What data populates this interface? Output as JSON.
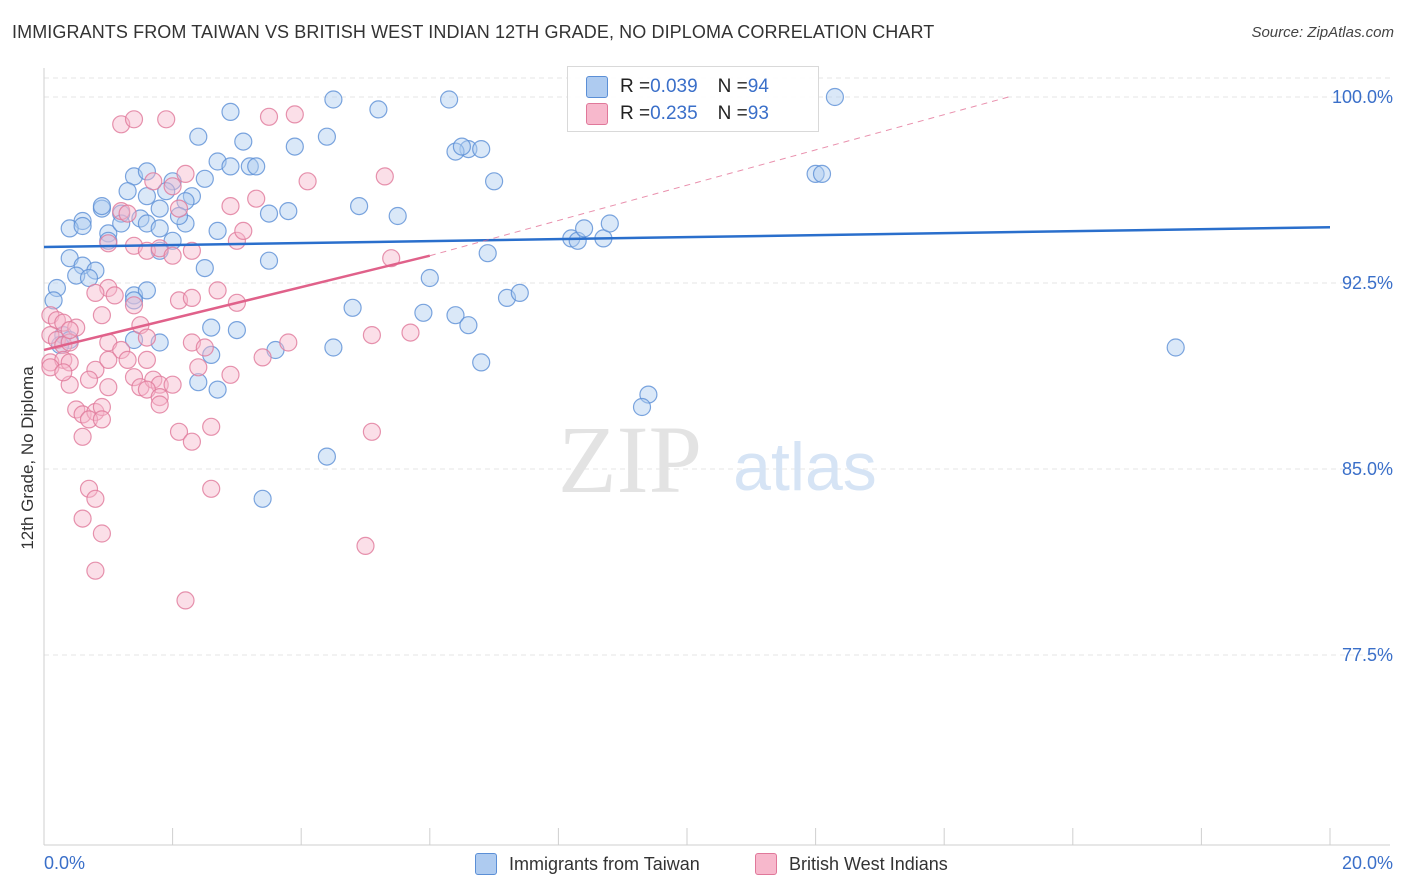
{
  "header": {
    "title": "IMMIGRANTS FROM TAIWAN VS BRITISH WEST INDIAN 12TH GRADE, NO DIPLOMA CORRELATION CHART",
    "source": "Source: ZipAtlas.com"
  },
  "legend_top": [
    {
      "r_label": "R = ",
      "r_value": "0.039",
      "n_label": "N = ",
      "n_value": "94"
    },
    {
      "r_label": "R = ",
      "r_value": "0.235",
      "n_label": "N = ",
      "n_value": "93"
    }
  ],
  "watermark": {
    "zip": "ZIP",
    "atlas": "atlas"
  },
  "colors": {
    "taiwan_fill": "#aecbf0",
    "taiwan_stroke": "#5b8fd6",
    "taiwan_line": "#2a6fcc",
    "bwi_fill": "#f7b8cc",
    "bwi_stroke": "#e0789a",
    "bwi_line": "#e0618a",
    "tick_label": "#3a6fc9",
    "grid": "#e6e6e6"
  },
  "chart_data": {
    "type": "scatter",
    "title": "IMMIGRANTS FROM TAIWAN VS BRITISH WEST INDIAN 12TH GRADE, NO DIPLOMA CORRELATION CHART",
    "xlabel": "",
    "ylabel": "12th Grade, No Diploma",
    "xlim": [
      0,
      20
    ],
    "ylim": [
      70,
      100.8
    ],
    "x_tick_labels": [
      "0.0%",
      "20.0%"
    ],
    "y_ticks": [
      77.5,
      85.0,
      92.5,
      100.0
    ],
    "y_tick_labels": [
      "77.5%",
      "85.0%",
      "92.5%",
      "100.0%"
    ],
    "grid": true,
    "legend_position": "bottom",
    "series": [
      {
        "name": "Immigrants from Taiwan",
        "R": 0.039,
        "N": 94,
        "trend": {
          "x": [
            0,
            20
          ],
          "y": [
            93.95,
            94.75
          ]
        },
        "points": [
          [
            1.4,
            96.8
          ],
          [
            1.3,
            96.2
          ],
          [
            1.6,
            97.0
          ],
          [
            1.6,
            96.0
          ],
          [
            2.0,
            96.6
          ],
          [
            2.5,
            96.7
          ],
          [
            2.7,
            97.4
          ],
          [
            2.9,
            97.2
          ],
          [
            3.2,
            97.2
          ],
          [
            3.1,
            98.2
          ],
          [
            2.9,
            99.4
          ],
          [
            2.4,
            98.4
          ],
          [
            3.9,
            98.0
          ],
          [
            4.4,
            98.4
          ],
          [
            4.5,
            99.9
          ],
          [
            5.2,
            99.5
          ],
          [
            6.3,
            99.9
          ],
          [
            6.6,
            97.9
          ],
          [
            6.8,
            97.9
          ],
          [
            6.4,
            97.8
          ],
          [
            0.6,
            95.0
          ],
          [
            0.9,
            95.5
          ],
          [
            1.2,
            95.3
          ],
          [
            1.5,
            95.1
          ],
          [
            1.0,
            94.5
          ],
          [
            1.6,
            94.9
          ],
          [
            1.8,
            95.5
          ],
          [
            2.2,
            94.9
          ],
          [
            2.7,
            94.6
          ],
          [
            3.5,
            95.3
          ],
          [
            4.9,
            95.6
          ],
          [
            5.5,
            95.2
          ],
          [
            7.0,
            96.6
          ],
          [
            0.4,
            94.7
          ],
          [
            0.6,
            94.8
          ],
          [
            1.0,
            94.2
          ],
          [
            1.8,
            94.7
          ],
          [
            2.0,
            94.2
          ],
          [
            1.8,
            93.8
          ],
          [
            0.4,
            93.5
          ],
          [
            0.6,
            93.2
          ],
          [
            0.8,
            93.0
          ],
          [
            0.5,
            92.8
          ],
          [
            0.7,
            92.7
          ],
          [
            2.5,
            93.1
          ],
          [
            3.5,
            93.4
          ],
          [
            6.0,
            92.7
          ],
          [
            6.9,
            93.7
          ],
          [
            1.4,
            92.0
          ],
          [
            1.6,
            92.2
          ],
          [
            0.2,
            92.3
          ],
          [
            0.15,
            91.8
          ],
          [
            1.4,
            91.8
          ],
          [
            2.6,
            90.7
          ],
          [
            3.0,
            90.6
          ],
          [
            4.8,
            91.5
          ],
          [
            5.9,
            91.3
          ],
          [
            6.4,
            91.2
          ],
          [
            6.6,
            90.8
          ],
          [
            7.2,
            91.9
          ],
          [
            7.4,
            92.1
          ],
          [
            0.3,
            90.4
          ],
          [
            0.4,
            90.2
          ],
          [
            0.25,
            90.0
          ],
          [
            1.4,
            90.2
          ],
          [
            1.8,
            90.1
          ],
          [
            2.6,
            89.6
          ],
          [
            3.6,
            89.8
          ],
          [
            4.5,
            89.9
          ],
          [
            6.8,
            89.3
          ],
          [
            2.4,
            88.5
          ],
          [
            2.7,
            88.2
          ],
          [
            9.4,
            88.0
          ],
          [
            9.3,
            87.5
          ],
          [
            4.4,
            85.5
          ],
          [
            3.4,
            83.8
          ],
          [
            12.0,
            96.9
          ],
          [
            12.1,
            96.9
          ],
          [
            8.2,
            94.3
          ],
          [
            8.3,
            94.2
          ],
          [
            8.4,
            94.7
          ],
          [
            8.7,
            94.3
          ],
          [
            8.8,
            94.9
          ],
          [
            17.6,
            89.9
          ],
          [
            12.3,
            100.0
          ],
          [
            1.2,
            94.9
          ],
          [
            3.8,
            95.4
          ],
          [
            2.3,
            96.0
          ],
          [
            0.9,
            95.6
          ],
          [
            2.2,
            95.8
          ],
          [
            2.1,
            95.2
          ],
          [
            3.3,
            97.2
          ],
          [
            1.9,
            96.2
          ],
          [
            6.5,
            98.0
          ]
        ]
      },
      {
        "name": "British West Indians",
        "R": 0.235,
        "N": 93,
        "trend": {
          "x": [
            0,
            6
          ],
          "y": [
            89.8,
            93.6
          ]
        },
        "trend_dashed": {
          "x": [
            6,
            15
          ],
          "y": [
            93.6,
            100.0
          ]
        },
        "points": [
          [
            1.2,
            98.9
          ],
          [
            1.4,
            99.1
          ],
          [
            1.9,
            99.1
          ],
          [
            3.5,
            99.2
          ],
          [
            3.9,
            99.3
          ],
          [
            1.7,
            96.6
          ],
          [
            2.2,
            96.9
          ],
          [
            2.0,
            96.4
          ],
          [
            3.3,
            95.9
          ],
          [
            4.1,
            96.6
          ],
          [
            5.3,
            96.8
          ],
          [
            1.2,
            95.4
          ],
          [
            1.3,
            95.3
          ],
          [
            2.1,
            95.5
          ],
          [
            2.9,
            95.6
          ],
          [
            1.0,
            94.1
          ],
          [
            1.4,
            94.0
          ],
          [
            1.6,
            93.8
          ],
          [
            1.8,
            93.9
          ],
          [
            2.0,
            93.6
          ],
          [
            2.3,
            93.8
          ],
          [
            3.0,
            94.2
          ],
          [
            3.1,
            94.6
          ],
          [
            5.4,
            93.5
          ],
          [
            1.0,
            92.3
          ],
          [
            1.1,
            92.0
          ],
          [
            1.4,
            91.6
          ],
          [
            2.1,
            91.8
          ],
          [
            2.3,
            91.9
          ],
          [
            3.0,
            91.7
          ],
          [
            0.1,
            91.2
          ],
          [
            0.2,
            91.0
          ],
          [
            0.3,
            90.9
          ],
          [
            0.5,
            90.7
          ],
          [
            0.9,
            91.2
          ],
          [
            1.5,
            90.8
          ],
          [
            0.1,
            90.4
          ],
          [
            0.2,
            90.2
          ],
          [
            0.3,
            90.0
          ],
          [
            0.4,
            90.1
          ],
          [
            1.0,
            90.1
          ],
          [
            1.2,
            89.8
          ],
          [
            2.3,
            90.1
          ],
          [
            3.8,
            90.1
          ],
          [
            5.1,
            90.4
          ],
          [
            5.7,
            90.5
          ],
          [
            0.1,
            89.3
          ],
          [
            0.3,
            89.4
          ],
          [
            0.4,
            89.3
          ],
          [
            0.8,
            89.0
          ],
          [
            1.0,
            89.4
          ],
          [
            1.3,
            89.4
          ],
          [
            1.6,
            89.4
          ],
          [
            2.4,
            89.1
          ],
          [
            3.4,
            89.5
          ],
          [
            1.4,
            88.7
          ],
          [
            1.5,
            88.3
          ],
          [
            1.7,
            88.6
          ],
          [
            1.8,
            88.4
          ],
          [
            2.0,
            88.4
          ],
          [
            0.4,
            88.4
          ],
          [
            1.0,
            88.3
          ],
          [
            1.6,
            88.2
          ],
          [
            1.8,
            87.9
          ],
          [
            0.5,
            87.4
          ],
          [
            0.6,
            87.2
          ],
          [
            0.8,
            87.3
          ],
          [
            0.7,
            87.0
          ],
          [
            0.9,
            87.5
          ],
          [
            0.9,
            87.0
          ],
          [
            2.1,
            86.5
          ],
          [
            2.3,
            86.1
          ],
          [
            2.6,
            86.7
          ],
          [
            0.6,
            86.3
          ],
          [
            5.1,
            86.5
          ],
          [
            0.7,
            84.2
          ],
          [
            0.8,
            83.8
          ],
          [
            2.6,
            84.2
          ],
          [
            0.6,
            83.0
          ],
          [
            0.9,
            82.4
          ],
          [
            5.0,
            81.9
          ],
          [
            0.8,
            80.9
          ],
          [
            2.2,
            79.7
          ],
          [
            2.5,
            89.9
          ],
          [
            2.9,
            88.8
          ],
          [
            1.8,
            87.6
          ],
          [
            0.4,
            90.6
          ],
          [
            0.1,
            89.1
          ],
          [
            0.7,
            88.6
          ],
          [
            0.3,
            88.9
          ],
          [
            1.6,
            90.3
          ],
          [
            0.8,
            92.1
          ],
          [
            2.7,
            92.2
          ]
        ]
      }
    ]
  },
  "legend_bottom": [
    {
      "label": "Immigrants from Taiwan"
    },
    {
      "label": "British West Indians"
    }
  ]
}
